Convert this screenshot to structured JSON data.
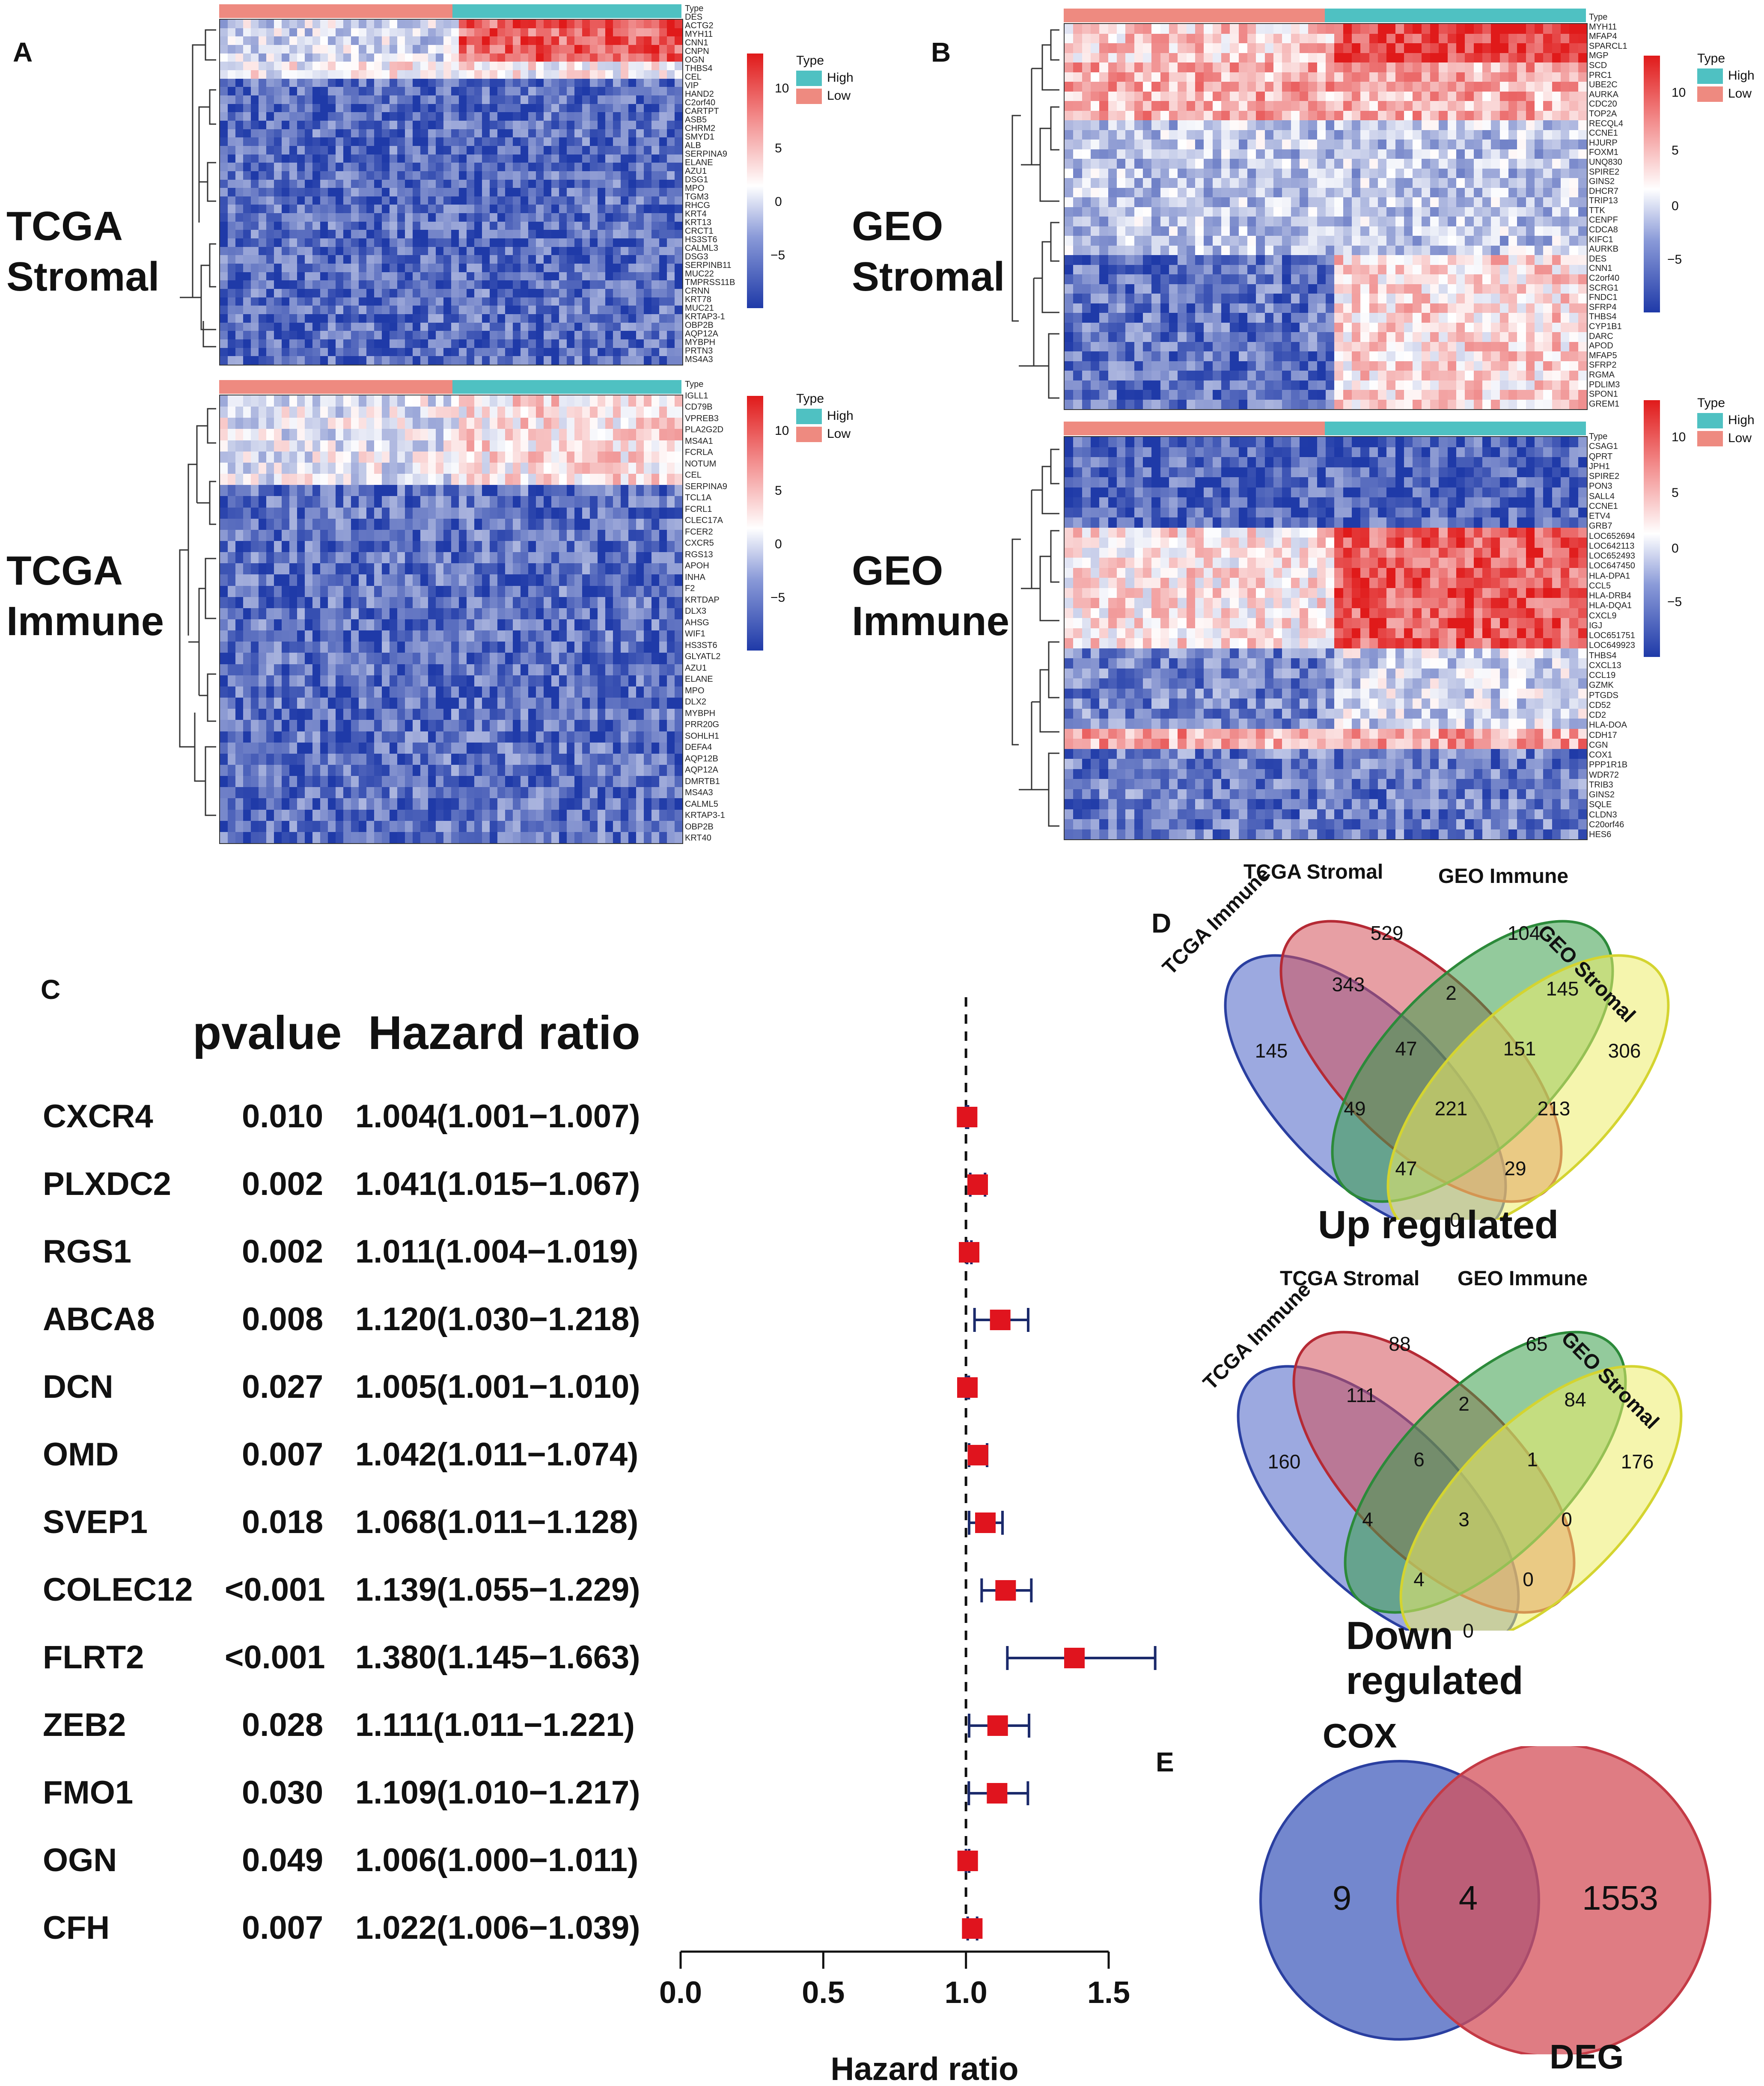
{
  "panels": {
    "A": "A",
    "B": "B",
    "C": "C",
    "D": "D",
    "E": "E"
  },
  "heatmaps": {
    "tcga_stromal": {
      "label_line1": "TCGA",
      "label_line2": "Stromal",
      "type_label": "Type",
      "genes": [
        "DES",
        "ACTG2",
        "MYH11",
        "CNN1",
        "CNPN",
        "OGN",
        "THBS4",
        "CEL",
        "VIP",
        "HAND2",
        "C2orf40",
        "CARTPT",
        "ASB5",
        "CHRM2",
        "SMYD1",
        "ALB",
        "SERPINA9",
        "ELANE",
        "AZU1",
        "DSG1",
        "MPO",
        "TGM3",
        "RHCG",
        "KRT4",
        "KRT13",
        "CRCT1",
        "HS3ST6",
        "CALML3",
        "DSG3",
        "SERPINB11",
        "MUC22",
        "TMPRSS11B",
        "CRNN",
        "KRT78",
        "MUC21",
        "KRTAP3-1",
        "OBP2B",
        "AQP12A",
        "MYBPH",
        "PRTN3",
        "MS4A3"
      ]
    },
    "tcga_immune": {
      "label_line1": "TCGA",
      "label_line2": "Immune",
      "type_label": "Type",
      "genes": [
        "IGLL1",
        "CD79B",
        "VPREB3",
        "PLA2G2D",
        "MS4A1",
        "FCRLA",
        "NOTUM",
        "CEL",
        "SERPINA9",
        "TCL1A",
        "FCRL1",
        "CLEC17A",
        "FCER2",
        "CXCR5",
        "RGS13",
        "APOH",
        "INHA",
        "F2",
        "KRTDAP",
        "DLX3",
        "AHSG",
        "WIF1",
        "HS3ST6",
        "GLYATL2",
        "AZU1",
        "ELANE",
        "MPO",
        "DLX2",
        "MYBPH",
        "PRR20G",
        "SOHLH1",
        "DEFA4",
        "AQP12B",
        "AQP12A",
        "DMRTB1",
        "MS4A3",
        "CALML5",
        "KRTAP3-1",
        "OBP2B",
        "KRT40"
      ]
    },
    "geo_stromal": {
      "label_line1": "GEO",
      "label_line2": "Stromal",
      "type_label": "Type",
      "genes": [
        "MYH11",
        "MFAP4",
        "SPARCL1",
        "MGP",
        "SCD",
        "PRC1",
        "UBE2C",
        "AURKA",
        "CDC20",
        "TOP2A",
        "RECQL4",
        "CCNE1",
        "HJURP",
        "FOXM1",
        "UNQ830",
        "SPIRE2",
        "GINS2",
        "DHCR7",
        "TRIP13",
        "TTK",
        "CENPF",
        "CDCA8",
        "KIFC1",
        "AURKB",
        "DES",
        "CNN1",
        "C2orf40",
        "SCRG1",
        "FNDC1",
        "SFRP4",
        "THBS4",
        "CYP1B1",
        "DARC",
        "APOD",
        "MFAP5",
        "SFRP2",
        "RGMA",
        "PDLIM3",
        "SPON1",
        "GREM1"
      ]
    },
    "geo_immune": {
      "label_line1": "GEO",
      "label_line2": "Immune",
      "type_label": "Type",
      "genes": [
        "CSAG1",
        "QPRT",
        "JPH1",
        "SPIRE2",
        "PON3",
        "SALL4",
        "CCNE1",
        "ETV4",
        "GRB7",
        "LOC652694",
        "LOC642113",
        "LOC652493",
        "LOC647450",
        "HLA-DPA1",
        "CCL5",
        "HLA-DRB4",
        "HLA-DQA1",
        "CXCL9",
        "IGJ",
        "LOC651751",
        "LOC649923",
        "THBS4",
        "CXCL13",
        "CCL19",
        "GZMK",
        "PTGDS",
        "CD52",
        "CD2",
        "HLA-DOA",
        "CDH17",
        "CGN",
        "COX1",
        "PPP1R1B",
        "WDR72",
        "TRIB3",
        "GINS2",
        "SQLE",
        "CLDN3",
        "C20orf46",
        "HES6"
      ]
    },
    "scale_ticks": [
      "10",
      "5",
      "0",
      "−5"
    ],
    "legend": {
      "title": "Type",
      "high": "High",
      "low": "Low"
    },
    "colors": {
      "high": "#4fc1c2",
      "low": "#ee8a80",
      "hm_high": "#e01a1a",
      "hm_mid": "#ffffff",
      "hm_low": "#1f3aa8"
    }
  },
  "forest": {
    "header_p": "pvalue",
    "header_hr": "Hazard ratio",
    "rows": [
      {
        "gene": "CXCR4",
        "p": "0.010",
        "hr_text": "1.004(1.001−1.007)"
      },
      {
        "gene": "PLXDC2",
        "p": "0.002",
        "hr_text": "1.041(1.015−1.067)"
      },
      {
        "gene": "RGS1",
        "p": "0.002",
        "hr_text": "1.011(1.004−1.019)"
      },
      {
        "gene": "ABCA8",
        "p": "0.008",
        "hr_text": "1.120(1.030−1.218)"
      },
      {
        "gene": "DCN",
        "p": "0.027",
        "hr_text": "1.005(1.001−1.010)"
      },
      {
        "gene": "OMD",
        "p": "0.007",
        "hr_text": "1.042(1.011−1.074)"
      },
      {
        "gene": "SVEP1",
        "p": "0.018",
        "hr_text": "1.068(1.011−1.128)"
      },
      {
        "gene": "COLEC12",
        "p": "<0.001",
        "hr_text": "1.139(1.055−1.229)"
      },
      {
        "gene": "FLRT2",
        "p": "<0.001",
        "hr_text": "1.380(1.145−1.663)"
      },
      {
        "gene": "ZEB2",
        "p": "0.028",
        "hr_text": "1.111(1.011−1.221)"
      },
      {
        "gene": "FMO1",
        "p": "0.030",
        "hr_text": "1.109(1.010−1.217)"
      },
      {
        "gene": "OGN",
        "p": "0.049",
        "hr_text": "1.006(1.000−1.011)"
      },
      {
        "gene": "CFH",
        "p": "0.007",
        "hr_text": "1.022(1.006−1.039)"
      }
    ],
    "axis_ticks": [
      "0.0",
      "0.5",
      "1.0",
      "1.5"
    ],
    "xlabel": "Hazard ratio"
  },
  "chart_data": {
    "type": "forest",
    "title": "",
    "xlabel": "Hazard ratio",
    "xlim": [
      0.0,
      1.5
    ],
    "reference_line": 1.0,
    "genes": [
      "CXCR4",
      "PLXDC2",
      "RGS1",
      "ABCA8",
      "DCN",
      "OMD",
      "SVEP1",
      "COLEC12",
      "FLRT2",
      "ZEB2",
      "FMO1",
      "OGN",
      "CFH"
    ],
    "hr": [
      1.004,
      1.041,
      1.011,
      1.12,
      1.005,
      1.042,
      1.068,
      1.139,
      1.38,
      1.111,
      1.109,
      1.006,
      1.022
    ],
    "lower": [
      1.001,
      1.015,
      1.004,
      1.03,
      1.001,
      1.011,
      1.011,
      1.055,
      1.145,
      1.011,
      1.01,
      1.0,
      1.006
    ],
    "upper": [
      1.007,
      1.067,
      1.019,
      1.218,
      1.01,
      1.074,
      1.128,
      1.229,
      1.663,
      1.221,
      1.217,
      1.011,
      1.039
    ]
  },
  "venn_up": {
    "title": "Up regulated",
    "sets": [
      "TCGA Immune",
      "TCGA Stromal",
      "GEO Immune",
      "GEO Stromal"
    ],
    "counts": [
      "529",
      "104",
      "343",
      "2",
      "145",
      "145",
      "47",
      "151",
      "306",
      "49",
      "221",
      "213",
      "47",
      "29",
      "0"
    ]
  },
  "venn_down": {
    "title": "Down regulated",
    "sets": [
      "TCGA Immune",
      "TCGA Stromal",
      "GEO Immune",
      "GEO Stromal"
    ],
    "counts": [
      "88",
      "65",
      "111",
      "2",
      "84",
      "160",
      "6",
      "1",
      "176",
      "4",
      "3",
      "0",
      "4",
      "0",
      "0"
    ]
  },
  "venn_e": {
    "sets": [
      "COX",
      "DEG"
    ],
    "counts": [
      "9",
      "4",
      "1553"
    ]
  }
}
